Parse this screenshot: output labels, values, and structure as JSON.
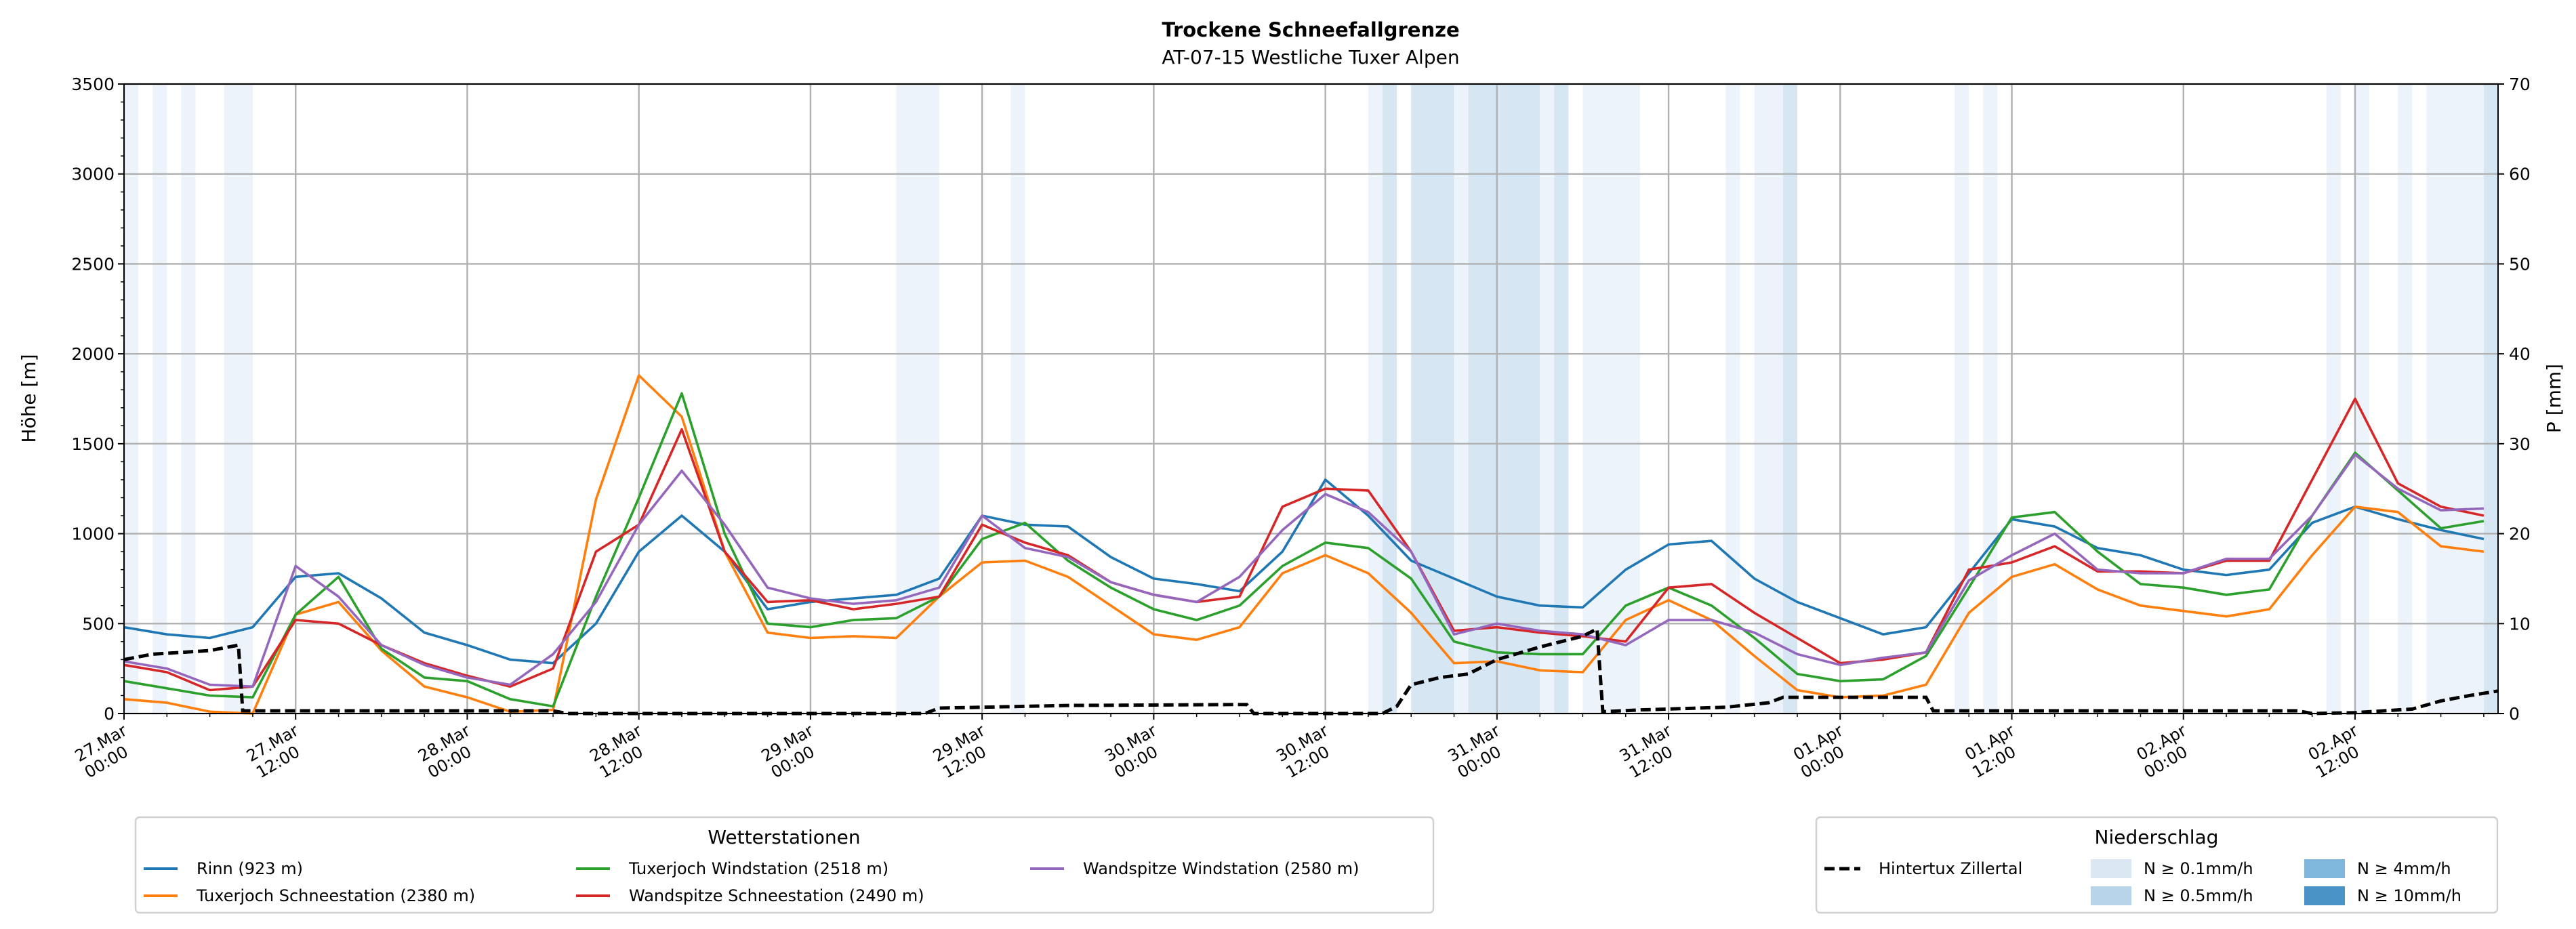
{
  "chart_data": {
    "type": "line",
    "title": "Trockene Schneefallgrenze",
    "subtitle": "AT-07-15 Westliche Tuxer Alpen",
    "ylabel": "Höhe [m]",
    "y2label": "P [mm]",
    "xlabel": "",
    "x_unit": "hours since 27.Mar 00:00",
    "xlim": [
      0,
      166
    ],
    "ylim": [
      0,
      3500
    ],
    "y2lim": [
      0,
      70
    ],
    "grid": true,
    "yticks": [
      "0",
      "500",
      "1000",
      "1500",
      "2000",
      "2500",
      "3000",
      "3500"
    ],
    "y2ticks": [
      "0",
      "10",
      "20",
      "30",
      "40",
      "50",
      "60",
      "70"
    ],
    "xticks": [
      {
        "h": 0,
        "date": "27.Mar",
        "time": "00:00"
      },
      {
        "h": 12,
        "date": "27.Mar",
        "time": "12:00"
      },
      {
        "h": 24,
        "date": "28.Mar",
        "time": "00:00"
      },
      {
        "h": 36,
        "date": "28.Mar",
        "time": "12:00"
      },
      {
        "h": 48,
        "date": "29.Mar",
        "time": "00:00"
      },
      {
        "h": 60,
        "date": "29.Mar",
        "time": "12:00"
      },
      {
        "h": 72,
        "date": "30.Mar",
        "time": "00:00"
      },
      {
        "h": 84,
        "date": "30.Mar",
        "time": "12:00"
      },
      {
        "h": 96,
        "date": "31.Mar",
        "time": "00:00"
      },
      {
        "h": 108,
        "date": "31.Mar",
        "time": "12:00"
      },
      {
        "h": 120,
        "date": "01.Apr",
        "time": "00:00"
      },
      {
        "h": 132,
        "date": "01.Apr",
        "time": "12:00"
      },
      {
        "h": 144,
        "date": "02.Apr",
        "time": "00:00"
      },
      {
        "h": 156,
        "date": "02.Apr",
        "time": "12:00"
      }
    ],
    "x": [
      0,
      3,
      6,
      9,
      12,
      15,
      18,
      21,
      24,
      27,
      30,
      33,
      36,
      39,
      42,
      45,
      48,
      51,
      54,
      57,
      60,
      63,
      66,
      69,
      72,
      75,
      78,
      81,
      84,
      87,
      90,
      93,
      96,
      99,
      102,
      105,
      108,
      111,
      114,
      117,
      120,
      123,
      126,
      129,
      132,
      135,
      138,
      141,
      144,
      147,
      150,
      153,
      156,
      159,
      162,
      165
    ],
    "series": [
      {
        "name": "Rinn (923 m)",
        "color": "#1f77b4",
        "values": [
          480,
          440,
          420,
          480,
          760,
          780,
          640,
          450,
          380,
          300,
          280,
          500,
          900,
          1100,
          900,
          580,
          620,
          640,
          660,
          750,
          1100,
          1050,
          1040,
          870,
          750,
          720,
          680,
          900,
          1300,
          1100,
          850,
          750,
          650,
          600,
          590,
          800,
          940,
          960,
          750,
          620,
          530,
          440,
          480,
          780,
          1080,
          1040,
          920,
          880,
          800,
          770,
          800,
          1060,
          1150,
          1080,
          1020,
          970
        ]
      },
      {
        "name": "Tuxerjoch Schneestation (2380 m)",
        "color": "#ff7f0e",
        "values": [
          80,
          60,
          10,
          0,
          550,
          620,
          350,
          150,
          90,
          10,
          20,
          1190,
          1880,
          1650,
          900,
          450,
          420,
          430,
          420,
          650,
          840,
          850,
          760,
          600,
          440,
          410,
          480,
          780,
          880,
          780,
          560,
          280,
          290,
          240,
          230,
          520,
          630,
          520,
          320,
          130,
          90,
          100,
          160,
          560,
          760,
          830,
          690,
          600,
          570,
          540,
          580,
          880,
          1150,
          1120,
          930,
          900
        ]
      },
      {
        "name": "Tuxerjoch Windstation (2518 m)",
        "color": "#2ca02c",
        "values": [
          180,
          140,
          100,
          90,
          550,
          760,
          360,
          200,
          180,
          80,
          40,
          650,
          1200,
          1780,
          1000,
          500,
          480,
          520,
          530,
          650,
          970,
          1060,
          850,
          700,
          580,
          520,
          600,
          820,
          950,
          920,
          750,
          400,
          340,
          330,
          330,
          600,
          700,
          600,
          420,
          220,
          180,
          190,
          320,
          700,
          1090,
          1120,
          900,
          720,
          700,
          660,
          690,
          1100,
          1450,
          1240,
          1030,
          1070
        ]
      },
      {
        "name": "Wandspitze Schneestation (2490 m)",
        "color": "#d62728",
        "values": [
          270,
          230,
          130,
          150,
          520,
          500,
          380,
          280,
          210,
          150,
          250,
          900,
          1050,
          1580,
          900,
          620,
          630,
          580,
          610,
          650,
          1050,
          950,
          880,
          730,
          660,
          620,
          650,
          1150,
          1250,
          1240,
          900,
          460,
          480,
          450,
          430,
          400,
          700,
          720,
          560,
          420,
          280,
          300,
          340,
          800,
          840,
          930,
          790,
          790,
          780,
          850,
          850,
          1300,
          1750,
          1280,
          1150,
          1100
        ]
      },
      {
        "name": "Wandspitze Windstation (2580 m)",
        "color": "#9467bd",
        "values": [
          290,
          250,
          160,
          150,
          820,
          650,
          380,
          270,
          200,
          160,
          330,
          620,
          1050,
          1350,
          1050,
          700,
          640,
          610,
          630,
          700,
          1100,
          920,
          870,
          730,
          660,
          620,
          760,
          1020,
          1220,
          1120,
          900,
          440,
          500,
          460,
          440,
          380,
          520,
          520,
          450,
          330,
          270,
          310,
          340,
          740,
          880,
          1000,
          800,
          780,
          780,
          860,
          860,
          1100,
          1440,
          1250,
          1130,
          1140
        ]
      }
    ],
    "precip_line": {
      "name": "Hintertux Zillertal",
      "color": "#000000",
      "points_h_mm": [
        [
          0,
          6
        ],
        [
          2,
          6.6
        ],
        [
          4,
          6.8
        ],
        [
          6,
          7
        ],
        [
          8,
          7.6
        ],
        [
          8.3,
          0.3
        ],
        [
          30,
          0.3
        ],
        [
          31,
          0
        ],
        [
          56,
          0
        ],
        [
          57,
          0.6
        ],
        [
          66,
          0.9
        ],
        [
          78.5,
          1
        ],
        [
          79,
          0
        ],
        [
          88,
          0
        ],
        [
          89,
          0.8
        ],
        [
          90,
          3.2
        ],
        [
          92,
          4
        ],
        [
          94,
          4.4
        ],
        [
          96,
          6
        ],
        [
          99,
          7.4
        ],
        [
          102,
          8.6
        ],
        [
          103,
          9.4
        ],
        [
          103.4,
          0.2
        ],
        [
          106,
          0.4
        ],
        [
          112,
          0.7
        ],
        [
          115,
          1.2
        ],
        [
          116,
          1.8
        ],
        [
          126,
          1.8
        ],
        [
          126.5,
          0.3
        ],
        [
          152,
          0.3
        ],
        [
          153,
          0
        ],
        [
          156,
          0.1
        ],
        [
          160,
          0.5
        ],
        [
          162,
          1.4
        ],
        [
          164,
          2
        ],
        [
          166,
          2.5
        ]
      ]
    },
    "precip_bands": [
      {
        "start": 0,
        "end": 1,
        "level": "0.1"
      },
      {
        "start": 2,
        "end": 3,
        "level": "0.1"
      },
      {
        "start": 4,
        "end": 5,
        "level": "0.1"
      },
      {
        "start": 7,
        "end": 9,
        "level": "0.1"
      },
      {
        "start": 54,
        "end": 57,
        "level": "0.1"
      },
      {
        "start": 62,
        "end": 63,
        "level": "0.1"
      },
      {
        "start": 87,
        "end": 88,
        "level": "0.1"
      },
      {
        "start": 88,
        "end": 89,
        "level": "0.5"
      },
      {
        "start": 90,
        "end": 93,
        "level": "0.5"
      },
      {
        "start": 93,
        "end": 94,
        "level": "0.1"
      },
      {
        "start": 94,
        "end": 99,
        "level": "0.5"
      },
      {
        "start": 99,
        "end": 100,
        "level": "0.1"
      },
      {
        "start": 100,
        "end": 101,
        "level": "0.5"
      },
      {
        "start": 102,
        "end": 106,
        "level": "0.1"
      },
      {
        "start": 112,
        "end": 113,
        "level": "0.1"
      },
      {
        "start": 114,
        "end": 116,
        "level": "0.1"
      },
      {
        "start": 116,
        "end": 117,
        "level": "0.5"
      },
      {
        "start": 128,
        "end": 129,
        "level": "0.1"
      },
      {
        "start": 130,
        "end": 131,
        "level": "0.1"
      },
      {
        "start": 154,
        "end": 155,
        "level": "0.1"
      },
      {
        "start": 156,
        "end": 157,
        "level": "0.1"
      },
      {
        "start": 159,
        "end": 160,
        "level": "0.1"
      },
      {
        "start": 161,
        "end": 165,
        "level": "0.1"
      },
      {
        "start": 165,
        "end": 166,
        "level": "0.5"
      }
    ],
    "band_colors": {
      "0.1": "#edf3fa",
      "0.5": "#d6e6f3",
      "4": "#a9cbe6",
      "10": "#7fb2da"
    },
    "legend_stations": {
      "title": "Wetterstationen",
      "placement": "bottom-left"
    },
    "legend_precip": {
      "title": "Niederschlag",
      "placement": "bottom-right",
      "line_label": "Hintertux Zillertal",
      "levels": [
        {
          "key": "0.1",
          "label": "N ≥ 0.1mm/h",
          "color": "#dbe8f4"
        },
        {
          "key": "0.5",
          "label": "N ≥ 0.5mm/h",
          "color": "#b8d4ea"
        },
        {
          "key": "4",
          "label": "N ≥ 4mm/h",
          "color": "#7fb6dc"
        },
        {
          "key": "10",
          "label": "N ≥ 10mm/h",
          "color": "#4a93c7"
        }
      ]
    }
  }
}
